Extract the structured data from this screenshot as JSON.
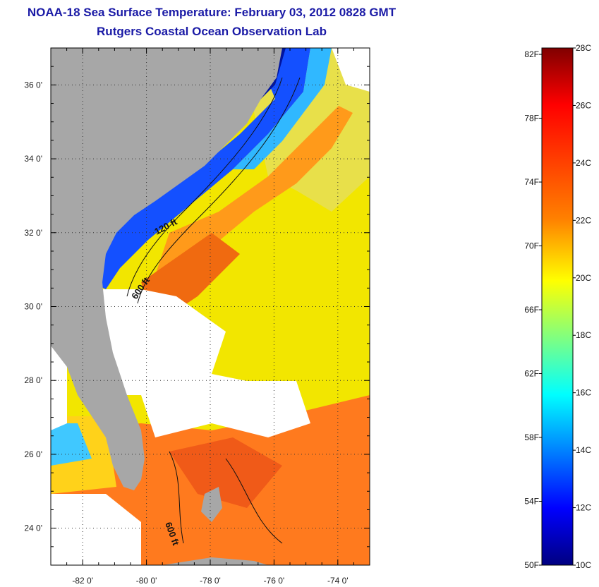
{
  "header": {
    "title": "NOAA-18 Sea Surface Temperature:  February 03, 2012 0828 GMT",
    "subtitle": "Rutgers Coastal Ocean Observation Lab"
  },
  "map": {
    "lat_labels": [
      "36 0'",
      "34 0'",
      "32 0'",
      "30 0'",
      "28 0'",
      "26 0'",
      "24 0'"
    ],
    "lat_values": [
      36,
      34,
      32,
      30,
      28,
      26,
      24
    ],
    "lon_labels": [
      "-82 0'",
      "-80 0'",
      "-78 0'",
      "-76 0'",
      "-74 0'"
    ],
    "lon_values": [
      -82,
      -80,
      -78,
      -76,
      -74
    ],
    "lat_range": [
      23,
      37
    ],
    "lon_range": [
      -83,
      -73
    ],
    "contour_labels": [
      "120 ft",
      "600 ft",
      "600 ft"
    ],
    "colors": {
      "land": "#a7a7a7",
      "cloud": "#ffffff"
    }
  },
  "colorbar": {
    "fahrenheit": [
      "82F",
      "78F",
      "74F",
      "70F",
      "66F",
      "62F",
      "58F",
      "54F",
      "50F"
    ],
    "celsius": [
      "28C",
      "26C",
      "24C",
      "22C",
      "20C",
      "18C",
      "16C",
      "14C",
      "12C",
      "10C"
    ],
    "range_c": [
      10,
      28
    ],
    "stops": [
      "#800000",
      "#ff0000",
      "#ff8000",
      "#ffff00",
      "#80ff80",
      "#00ffff",
      "#0080ff",
      "#0000ff",
      "#000080"
    ]
  }
}
